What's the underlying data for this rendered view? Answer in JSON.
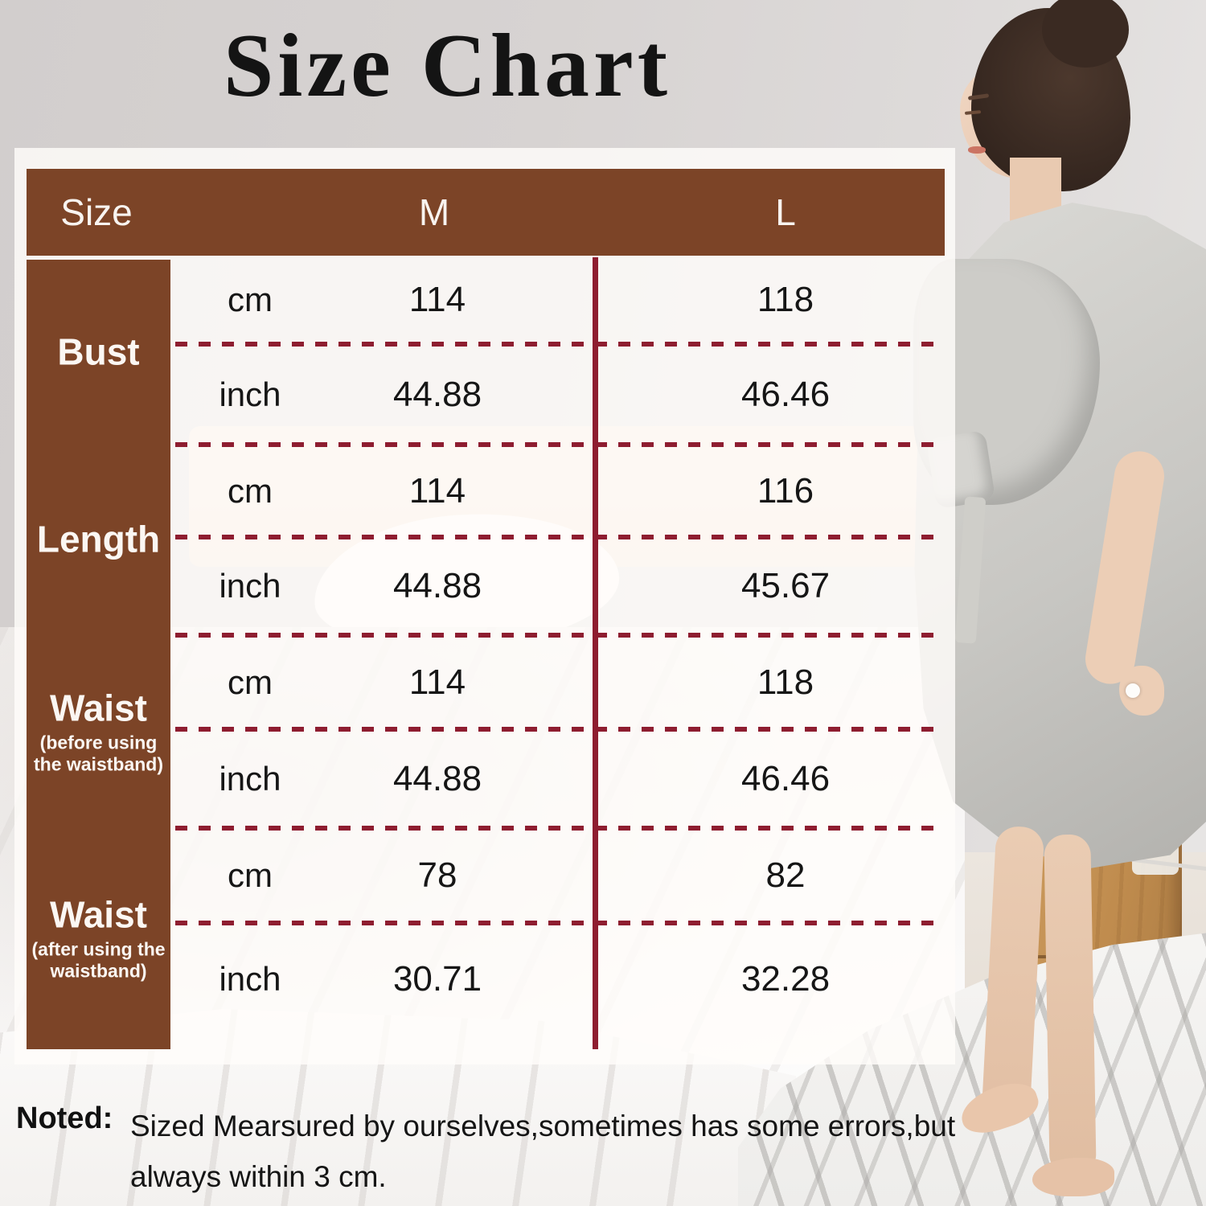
{
  "title": "Size Chart",
  "table": {
    "header": {
      "size_label": "Size",
      "columns": [
        "M",
        "L"
      ]
    },
    "groups": [
      {
        "label": "Bust",
        "sublabel": "",
        "rows": [
          {
            "unit": "cm",
            "m": "114",
            "l": "118"
          },
          {
            "unit": "inch",
            "m": "44.88",
            "l": "46.46"
          }
        ]
      },
      {
        "label": "Length",
        "sublabel": "",
        "rows": [
          {
            "unit": "cm",
            "m": "114",
            "l": "116"
          },
          {
            "unit": "inch",
            "m": "44.88",
            "l": "45.67"
          }
        ]
      },
      {
        "label": "Waist",
        "sublabel": "(before using the waistband)",
        "rows": [
          {
            "unit": "cm",
            "m": "114",
            "l": "118"
          },
          {
            "unit": "inch",
            "m": "44.88",
            "l": "46.46"
          }
        ]
      },
      {
        "label": "Waist",
        "sublabel": "(after using the waistband)",
        "rows": [
          {
            "unit": "cm",
            "m": "78",
            "l": "82"
          },
          {
            "unit": "inch",
            "m": "30.71",
            "l": "32.28"
          }
        ]
      }
    ]
  },
  "note": {
    "label": "Noted:",
    "text": "Sized Mearsured by ourselves,sometimes has some errors,but always within 3 cm."
  },
  "colors": {
    "header_brown": "#7c4427",
    "line_maroon": "#8e1d30"
  },
  "chart_data": {
    "type": "table",
    "title": "Size Chart",
    "columns": [
      "Size",
      "M",
      "L"
    ],
    "rows": [
      [
        "Bust (cm)",
        114,
        118
      ],
      [
        "Bust (inch)",
        44.88,
        46.46
      ],
      [
        "Length (cm)",
        114,
        116
      ],
      [
        "Length (inch)",
        44.88,
        45.67
      ],
      [
        "Waist before using the waistband (cm)",
        114,
        118
      ],
      [
        "Waist before using the waistband (inch)",
        44.88,
        46.46
      ],
      [
        "Waist after using the waistband (cm)",
        78,
        82
      ],
      [
        "Waist after using the waistband (inch)",
        30.71,
        32.28
      ]
    ]
  }
}
